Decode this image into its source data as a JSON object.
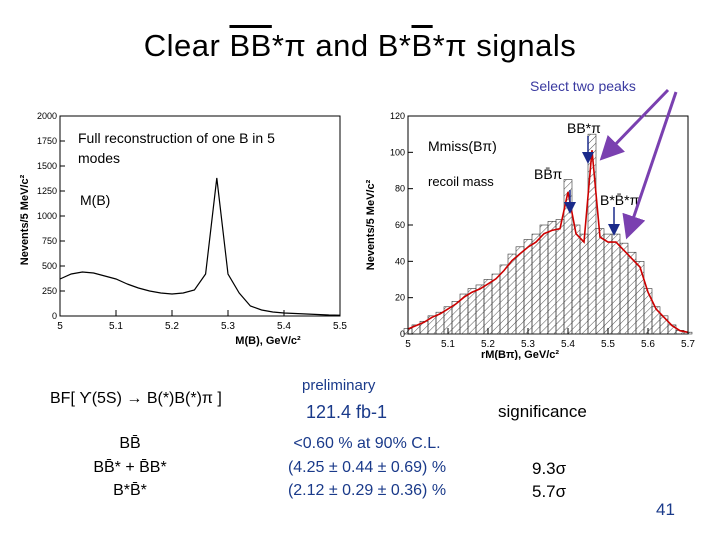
{
  "slide": {
    "title_pre": "Clear ",
    "title_bb": "BB",
    "title_mid": "*π and ",
    "title_b": "B*",
    "title_bbar": "B",
    "title_post": "*π signals",
    "select_note": "Select two peaks",
    "page_number": "41"
  },
  "left_plot": {
    "annotation_line1": "Full reconstruction of one B in 5",
    "annotation_line2": "modes",
    "var_label": "M(B)",
    "y_axis_label": "Nevents/5 MeV/c²",
    "x_axis_label": "M(B), GeV/c²",
    "x_ticks": [
      "5",
      "5.1",
      "5.2",
      "5.3",
      "5.4",
      "5.5"
    ],
    "y_ticks": [
      "0",
      "250",
      "500",
      "750",
      "1000",
      "1250",
      "1500",
      "1750",
      "2000"
    ]
  },
  "right_plot": {
    "mmiss_label": "Mmiss(Bπ)",
    "recoil_label": "recoil mass",
    "peak_bbpi": "BB̄π",
    "peak_bbstarpi": "BB*π",
    "peak_bstarbstarpi": "B*B̄*π",
    "y_axis_label": "Nevents/5 MeV/c²",
    "x_axis_label": "rM(Bπ), GeV/c²",
    "x_ticks": [
      "5",
      "5.1",
      "5.2",
      "5.3",
      "5.4",
      "5.5",
      "5.6",
      "5.7"
    ],
    "y_ticks": [
      "0",
      "20",
      "40",
      "60",
      "80",
      "100",
      "120"
    ]
  },
  "results": {
    "bf_label": "BF[ ϒ(5S) → B(*)B(*)π ]",
    "preliminary": "preliminary",
    "lumi": "121.4 fb-1",
    "significance_header": "significance",
    "rows": [
      {
        "channel": "BB̄",
        "value": "<0.60 % at 90% C.L.",
        "significance": ""
      },
      {
        "channel": "BB̄* + B̄B*",
        "value": "(4.25 ± 0.44 ± 0.69) %",
        "significance": "9.3σ"
      },
      {
        "channel": "B*B̄*",
        "value": "(2.12 ± 0.29 ± 0.36) %",
        "significance": "5.7σ"
      }
    ]
  },
  "chart_data": [
    {
      "type": "line",
      "x": [
        5.0,
        5.02,
        5.04,
        5.06,
        5.08,
        5.1,
        5.12,
        5.14,
        5.16,
        5.18,
        5.2,
        5.22,
        5.24,
        5.26,
        5.27,
        5.28,
        5.29,
        5.3,
        5.32,
        5.34,
        5.36,
        5.38,
        5.4,
        5.42,
        5.44,
        5.46,
        5.48,
        5.5
      ],
      "values": [
        370,
        420,
        440,
        430,
        400,
        370,
        320,
        280,
        250,
        230,
        220,
        230,
        260,
        420,
        900,
        1380,
        900,
        420,
        230,
        100,
        60,
        40,
        30,
        25,
        20,
        15,
        10,
        8
      ],
      "xlabel": "M(B), GeV/c²",
      "ylabel": "Nevents/5 MeV/c²",
      "xlim": [
        5.0,
        5.5
      ],
      "ylim": [
        0,
        2000
      ]
    },
    {
      "type": "bar",
      "x": [
        5.0,
        5.02,
        5.04,
        5.06,
        5.08,
        5.1,
        5.12,
        5.14,
        5.16,
        5.18,
        5.2,
        5.22,
        5.24,
        5.26,
        5.28,
        5.3,
        5.32,
        5.34,
        5.36,
        5.38,
        5.4,
        5.42,
        5.44,
        5.46,
        5.48,
        5.5,
        5.52,
        5.54,
        5.56,
        5.58,
        5.6,
        5.62,
        5.64,
        5.66,
        5.68,
        5.7
      ],
      "values": [
        3,
        5,
        7,
        10,
        12,
        15,
        18,
        22,
        25,
        27,
        30,
        33,
        38,
        44,
        48,
        52,
        55,
        60,
        62,
        63,
        85,
        60,
        55,
        110,
        58,
        55,
        55,
        50,
        45,
        40,
        25,
        15,
        10,
        5,
        2,
        1
      ],
      "xlabel": "rM(Bπ), GeV/c²",
      "ylabel": "Nevents/5 MeV/c²",
      "xlim": [
        5.0,
        5.7
      ],
      "ylim": [
        0,
        120
      ]
    }
  ]
}
